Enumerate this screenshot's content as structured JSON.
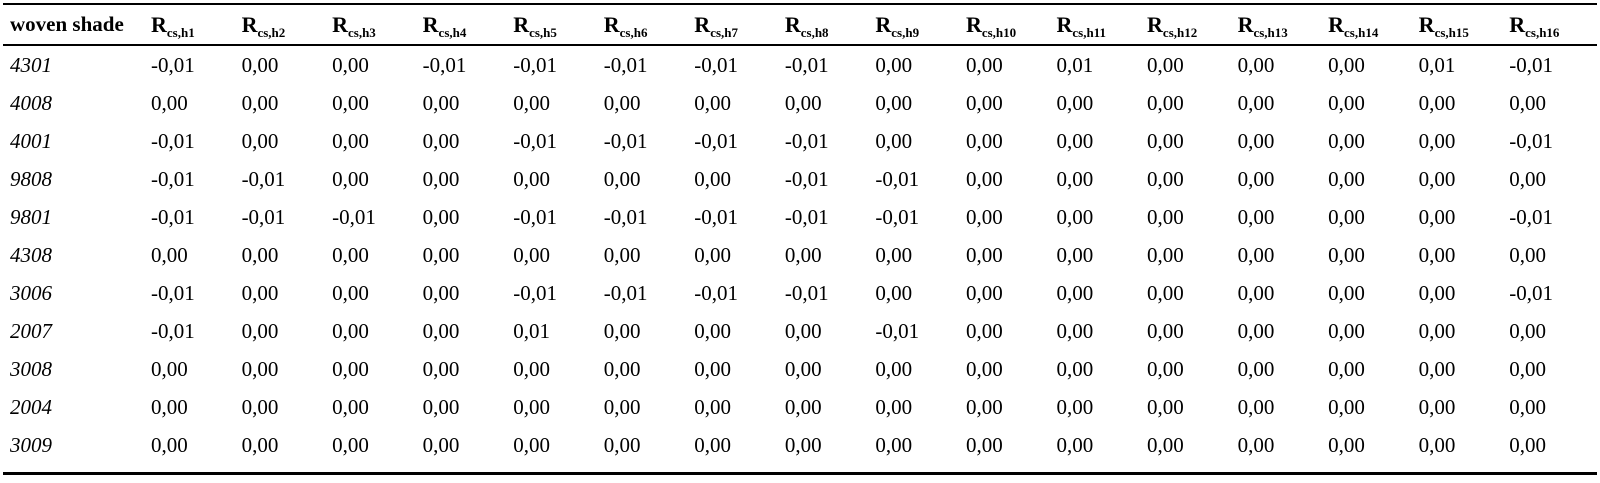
{
  "table": {
    "corner_header": "woven shade",
    "header_symbol": "R",
    "columns": [
      "cs,h1",
      "cs,h2",
      "cs,h3",
      "cs,h4",
      "cs,h5",
      "cs,h6",
      "cs,h7",
      "cs,h8",
      "cs,h9",
      "cs,h10",
      "cs,h11",
      "cs,h12",
      "cs,h13",
      "cs,h14",
      "cs,h15",
      "cs,h16"
    ],
    "rows": [
      {
        "shade": "4301",
        "values": [
          "-0,01",
          "0,00",
          "0,00",
          "-0,01",
          "-0,01",
          "-0,01",
          "-0,01",
          "-0,01",
          "0,00",
          "0,00",
          "0,01",
          "0,00",
          "0,00",
          "0,00",
          "0,01",
          "-0,01"
        ]
      },
      {
        "shade": "4008",
        "values": [
          "0,00",
          "0,00",
          "0,00",
          "0,00",
          "0,00",
          "0,00",
          "0,00",
          "0,00",
          "0,00",
          "0,00",
          "0,00",
          "0,00",
          "0,00",
          "0,00",
          "0,00",
          "0,00"
        ]
      },
      {
        "shade": "4001",
        "values": [
          "-0,01",
          "0,00",
          "0,00",
          "0,00",
          "-0,01",
          "-0,01",
          "-0,01",
          "-0,01",
          "0,00",
          "0,00",
          "0,00",
          "0,00",
          "0,00",
          "0,00",
          "0,00",
          "-0,01"
        ]
      },
      {
        "shade": "9808",
        "values": [
          "-0,01",
          "-0,01",
          "0,00",
          "0,00",
          "0,00",
          "0,00",
          "0,00",
          "-0,01",
          "-0,01",
          "0,00",
          "0,00",
          "0,00",
          "0,00",
          "0,00",
          "0,00",
          "0,00"
        ]
      },
      {
        "shade": "9801",
        "values": [
          "-0,01",
          "-0,01",
          "-0,01",
          "0,00",
          "-0,01",
          "-0,01",
          "-0,01",
          "-0,01",
          "-0,01",
          "0,00",
          "0,00",
          "0,00",
          "0,00",
          "0,00",
          "0,00",
          "-0,01"
        ]
      },
      {
        "shade": "4308",
        "values": [
          "0,00",
          "0,00",
          "0,00",
          "0,00",
          "0,00",
          "0,00",
          "0,00",
          "0,00",
          "0,00",
          "0,00",
          "0,00",
          "0,00",
          "0,00",
          "0,00",
          "0,00",
          "0,00"
        ]
      },
      {
        "shade": "3006",
        "values": [
          "-0,01",
          "0,00",
          "0,00",
          "0,00",
          "-0,01",
          "-0,01",
          "-0,01",
          "-0,01",
          "0,00",
          "0,00",
          "0,00",
          "0,00",
          "0,00",
          "0,00",
          "0,00",
          "-0,01"
        ]
      },
      {
        "shade": "2007",
        "values": [
          "-0,01",
          "0,00",
          "0,00",
          "0,00",
          "0,01",
          "0,00",
          "0,00",
          "0,00",
          "-0,01",
          "0,00",
          "0,00",
          "0,00",
          "0,00",
          "0,00",
          "0,00",
          "0,00"
        ]
      },
      {
        "shade": "3008",
        "values": [
          "0,00",
          "0,00",
          "0,00",
          "0,00",
          "0,00",
          "0,00",
          "0,00",
          "0,00",
          "0,00",
          "0,00",
          "0,00",
          "0,00",
          "0,00",
          "0,00",
          "0,00",
          "0,00"
        ]
      },
      {
        "shade": "2004",
        "values": [
          "0,00",
          "0,00",
          "0,00",
          "0,00",
          "0,00",
          "0,00",
          "0,00",
          "0,00",
          "0,00",
          "0,00",
          "0,00",
          "0,00",
          "0,00",
          "0,00",
          "0,00",
          "0,00"
        ]
      },
      {
        "shade": "3009",
        "values": [
          "0,00",
          "0,00",
          "0,00",
          "0,00",
          "0,00",
          "0,00",
          "0,00",
          "0,00",
          "0,00",
          "0,00",
          "0,00",
          "0,00",
          "0,00",
          "0,00",
          "0,00",
          "0,00"
        ]
      }
    ]
  }
}
